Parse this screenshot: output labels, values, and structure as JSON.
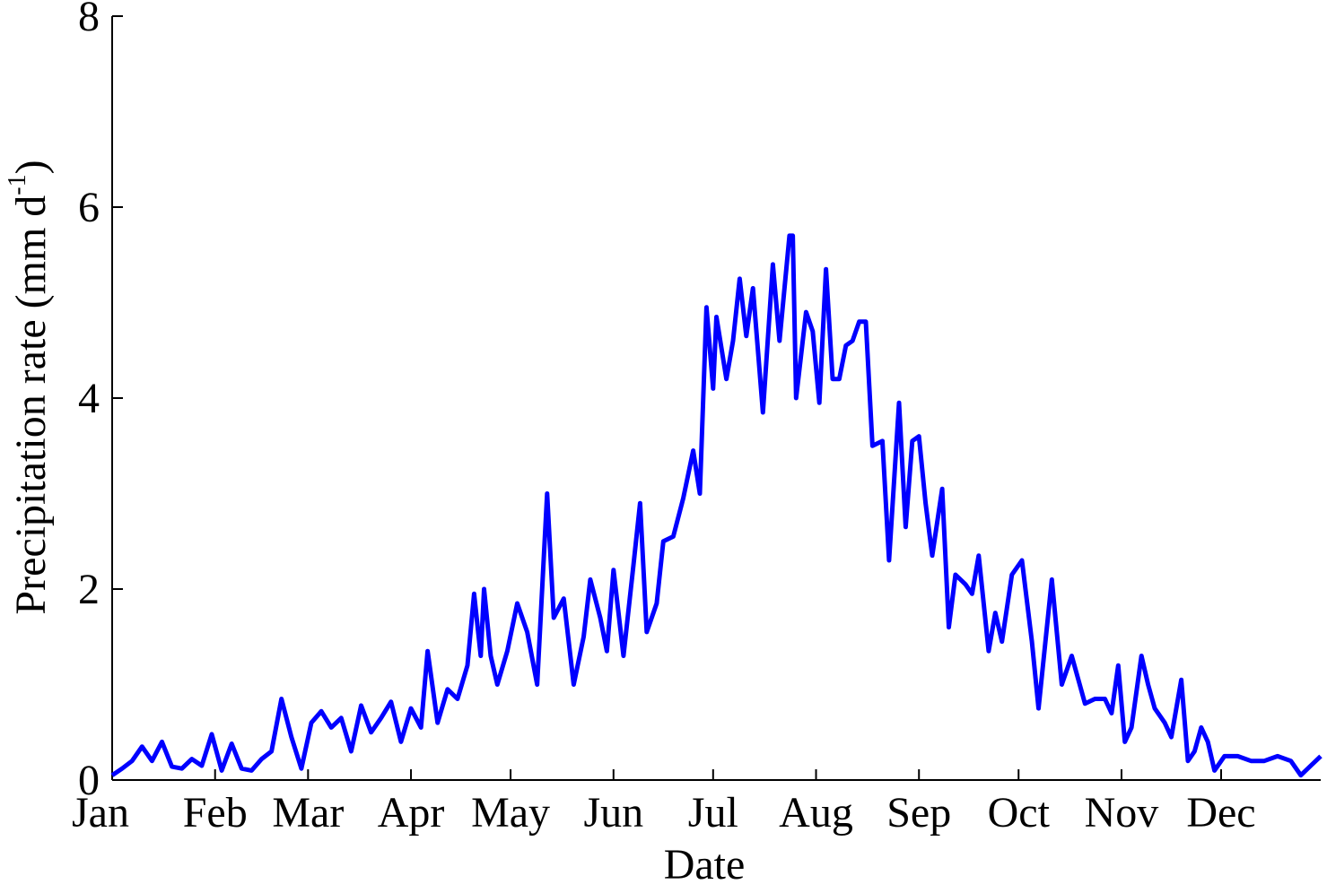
{
  "chart_data": {
    "type": "line",
    "xlabel": "Date",
    "ylabel": "Precipitation rate (mm d",
    "ylabel_superscript": "-1",
    "ylabel_end": ")",
    "x": [
      1,
      4,
      7,
      10,
      13,
      16,
      19,
      22,
      25,
      28,
      31,
      34,
      37,
      40,
      43,
      46,
      49,
      52,
      55,
      58,
      61,
      64,
      67,
      70,
      73,
      76,
      79,
      82,
      85,
      88,
      91,
      94,
      96,
      99,
      102,
      105,
      108,
      110,
      112,
      113,
      115,
      117,
      120,
      123,
      126,
      129,
      132,
      134,
      137,
      140,
      143,
      145,
      148,
      150,
      152,
      155,
      158,
      160,
      162,
      165,
      167,
      170,
      173,
      176,
      178,
      180,
      182,
      183,
      186,
      188,
      190,
      192,
      194,
      197,
      200,
      202,
      205,
      206,
      207,
      210,
      212,
      214,
      216,
      218,
      220,
      222,
      224,
      226,
      228,
      230,
      233,
      235,
      238,
      240,
      242,
      244,
      246,
      248,
      251,
      253,
      255,
      258,
      260,
      262,
      265,
      267,
      269,
      272,
      275,
      278,
      280,
      284,
      287,
      290,
      294,
      297,
      300,
      302,
      304,
      306,
      308,
      311,
      313,
      315,
      318,
      320,
      323,
      325,
      327,
      329,
      331,
      333,
      336,
      340,
      344,
      348,
      352,
      356,
      359,
      362,
      365
    ],
    "series": [
      {
        "name": "Precipitation rate",
        "color": "#0000ff",
        "values": [
          0.05,
          0.12,
          0.2,
          0.35,
          0.2,
          0.4,
          0.14,
          0.12,
          0.22,
          0.15,
          0.48,
          0.1,
          0.38,
          0.12,
          0.1,
          0.22,
          0.3,
          0.85,
          0.45,
          0.12,
          0.6,
          0.72,
          0.55,
          0.65,
          0.3,
          0.78,
          0.5,
          0.65,
          0.82,
          0.4,
          0.75,
          0.55,
          1.35,
          0.6,
          0.95,
          0.85,
          1.2,
          1.95,
          1.3,
          2.0,
          1.3,
          1.0,
          1.35,
          1.85,
          1.55,
          1.0,
          3.0,
          1.7,
          1.9,
          1.0,
          1.5,
          2.1,
          1.7,
          1.35,
          2.2,
          1.3,
          2.25,
          2.9,
          1.55,
          1.85,
          2.5,
          2.55,
          2.95,
          3.45,
          3.0,
          4.95,
          4.1,
          4.85,
          4.2,
          4.6,
          5.25,
          4.65,
          5.15,
          3.85,
          5.4,
          4.6,
          5.7,
          5.7,
          4.0,
          4.9,
          4.7,
          3.95,
          5.35,
          4.2,
          4.2,
          4.55,
          4.6,
          4.8,
          4.8,
          3.5,
          3.55,
          2.3,
          3.95,
          2.65,
          3.55,
          3.6,
          2.9,
          2.35,
          3.05,
          1.6,
          2.15,
          2.05,
          1.95,
          2.35,
          1.35,
          1.75,
          1.45,
          2.15,
          2.3,
          1.45,
          0.75,
          2.1,
          1.0,
          1.3,
          0.8,
          0.85,
          0.85,
          0.7,
          1.2,
          0.4,
          0.55,
          1.3,
          1.0,
          0.75,
          0.6,
          0.45,
          1.05,
          0.2,
          0.3,
          0.55,
          0.4,
          0.1,
          0.25,
          0.25,
          0.2,
          0.2,
          0.25,
          0.2,
          0.05,
          0.15,
          0.25
        ]
      }
    ],
    "xlim": [
      1,
      365
    ],
    "xticks": [
      {
        "value": 1,
        "label": "Jan"
      },
      {
        "value": 32,
        "label": "Feb"
      },
      {
        "value": 60,
        "label": "Mar"
      },
      {
        "value": 91,
        "label": "Apr"
      },
      {
        "value": 121,
        "label": "May"
      },
      {
        "value": 152,
        "label": "Jun"
      },
      {
        "value": 182,
        "label": "Jul"
      },
      {
        "value": 213,
        "label": "Aug"
      },
      {
        "value": 244,
        "label": "Sep"
      },
      {
        "value": 274,
        "label": "Oct"
      },
      {
        "value": 305,
        "label": "Nov"
      },
      {
        "value": 335,
        "label": "Dec"
      }
    ],
    "ylim": [
      0,
      8
    ],
    "yticks": [
      0,
      2,
      4,
      6,
      8
    ],
    "grid": false
  }
}
